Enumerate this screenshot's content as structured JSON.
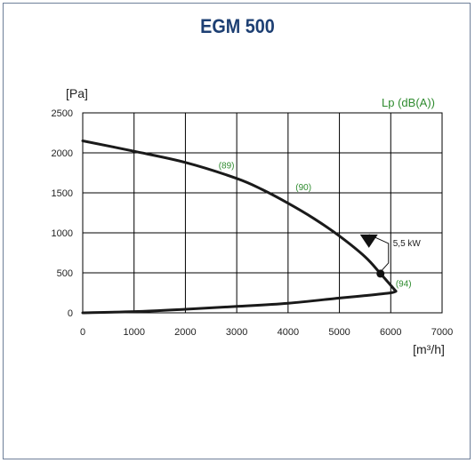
{
  "chart_data": {
    "type": "line",
    "title": "EGM 500",
    "ylabel": "[Pa]",
    "xlabel": "[m³/h]",
    "ylabel_right": "Lp (dB(A))",
    "xlim": [
      0,
      7000
    ],
    "ylim": [
      0,
      2500
    ],
    "x_ticks": [
      "0",
      "1000",
      "2000",
      "3000",
      "4000",
      "5000",
      "6000",
      "7000"
    ],
    "y_ticks": [
      "0",
      "500",
      "1000",
      "1500",
      "2000",
      "2500"
    ],
    "grid": true,
    "series": [
      {
        "role": "fan-curve",
        "x": [
          0,
          1000,
          2000,
          3000,
          3500,
          4000,
          4500,
          5000,
          5500,
          5800,
          6100
        ],
        "values": [
          2150,
          2020,
          1880,
          1680,
          1540,
          1370,
          1180,
          960,
          700,
          490,
          270
        ]
      },
      {
        "role": "system-curve",
        "x": [
          0,
          1000,
          2000,
          3000,
          4000,
          5000,
          5500,
          6000,
          6100
        ],
        "values": [
          0,
          15,
          45,
          80,
          120,
          185,
          215,
          250,
          270
        ]
      }
    ],
    "sound_levels": [
      {
        "label": "(89)",
        "x": 2800,
        "y": 1850
      },
      {
        "label": "(90)",
        "x": 4300,
        "y": 1580
      },
      {
        "label": "(94)",
        "x": 6250,
        "y": 370
      }
    ],
    "operating_point": {
      "x": 5800,
      "y": 490,
      "power_label": "5,5 kW"
    }
  },
  "colors": {
    "title": "#1d3f73",
    "annotation": "#2e8b2e",
    "curve": "#1a1a1a",
    "frame": "#6e7f99"
  }
}
